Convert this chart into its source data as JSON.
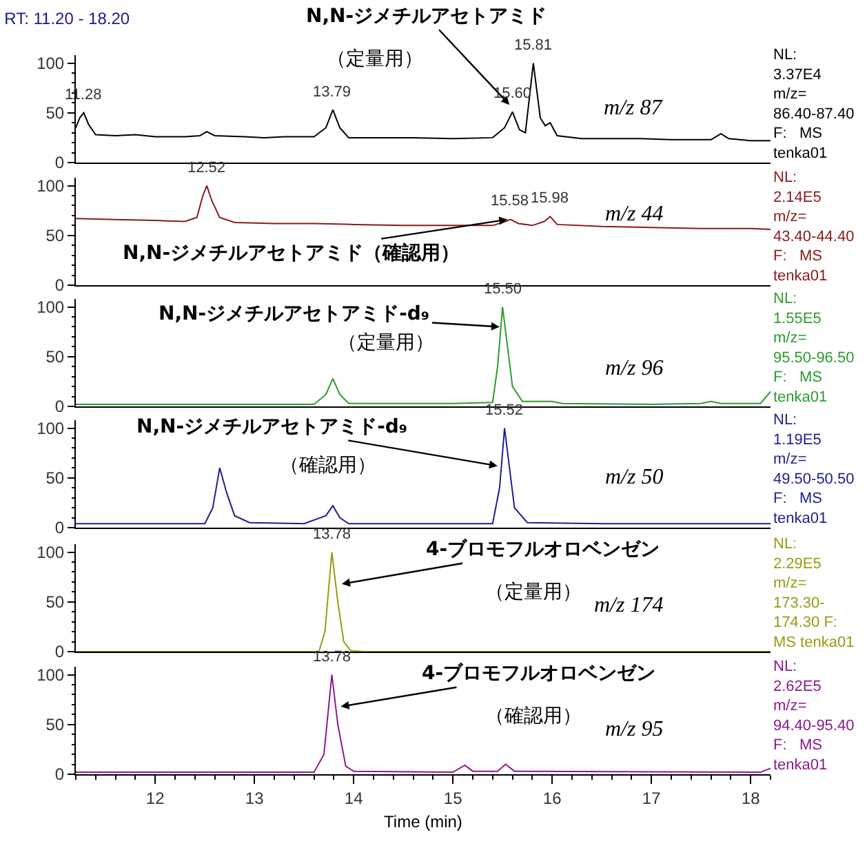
{
  "chart_data": [
    {
      "type": "line",
      "title": "RT: 11.20 - 18.20",
      "xlim": [
        11.2,
        18.2
      ],
      "xticks": [
        12,
        13,
        14,
        15,
        16,
        17,
        18
      ],
      "ylim": [
        0,
        108
      ],
      "yticks": [
        0,
        50,
        100
      ],
      "tick_labels": "y",
      "x": [
        11.2,
        11.24,
        11.28,
        11.33,
        11.4,
        11.6,
        11.8,
        12.0,
        12.3,
        12.45,
        12.52,
        12.6,
        12.9,
        13.1,
        13.3,
        13.6,
        13.72,
        13.79,
        13.86,
        13.95,
        14.2,
        14.6,
        15.0,
        15.4,
        15.52,
        15.6,
        15.67,
        15.73,
        15.81,
        15.88,
        15.93,
        15.98,
        16.05,
        16.3,
        16.6,
        16.9,
        17.2,
        17.6,
        17.7,
        17.78,
        18.0,
        18.2
      ],
      "series": [
        {
          "color": "#000000",
          "values": [
            35,
            45,
            50,
            38,
            28,
            27,
            28,
            26,
            26,
            27,
            31,
            27,
            26,
            25,
            26,
            26,
            35,
            53,
            35,
            25,
            25,
            25,
            24,
            25,
            35,
            51,
            33,
            30,
            100,
            45,
            37,
            40,
            27,
            24,
            24,
            24,
            23,
            23,
            29,
            24,
            22,
            22
          ]
        }
      ],
      "annotations": [
        {
          "text": "N,N-ジメチルアセトアミド",
          "x": 15.57,
          "y": 58
        },
        "（定量用）",
        "m/z 87",
        "NL:\n3.37E4\nm/z=\n86.40-87.40\nF:   MS\ntenka01",
        {
          "text": "11.28",
          "x": 11.28,
          "y": 50
        },
        {
          "text": "13.79",
          "x": 13.79,
          "y": 53
        },
        {
          "text": "15.60",
          "x": 15.6,
          "y": 51
        },
        {
          "text": "15.81",
          "x": 15.81,
          "y": 100
        }
      ]
    },
    {
      "type": "line",
      "xlim": [
        11.2,
        18.2
      ],
      "xticks": [
        12,
        13,
        14,
        15,
        16,
        17,
        18
      ],
      "ylim": [
        0,
        108
      ],
      "yticks": [
        0,
        50,
        100
      ],
      "tick_labels": "y",
      "x": [
        11.2,
        11.6,
        12.0,
        12.3,
        12.42,
        12.48,
        12.52,
        12.57,
        12.65,
        12.8,
        13.2,
        13.6,
        14.0,
        14.5,
        15.0,
        15.4,
        15.5,
        15.58,
        15.66,
        15.8,
        15.92,
        15.98,
        16.05,
        16.5,
        17.0,
        17.5,
        18.0,
        18.2
      ],
      "series": [
        {
          "color": "#8b1a1a",
          "values": [
            67,
            66,
            65,
            64,
            68,
            90,
            100,
            85,
            68,
            63,
            62,
            62,
            61,
            60,
            60,
            60,
            63,
            66,
            62,
            60,
            64,
            69,
            61,
            59,
            58,
            57,
            57,
            56
          ]
        }
      ],
      "annotations": [
        {
          "text": "N,N-ジメチルアセトアミド（確認用）",
          "x": 15.55,
          "y": 66
        },
        "m/z 44",
        "NL:\n2.14E5\nm/z=\n43.40-44.40\nF:   MS\ntenka01",
        {
          "text": "12.52",
          "x": 12.52,
          "y": 100
        },
        {
          "text": "15.58",
          "x": 15.58,
          "y": 66
        },
        {
          "text": "15.98",
          "x": 15.98,
          "y": 69
        }
      ]
    },
    {
      "type": "line",
      "xlim": [
        11.2,
        18.2
      ],
      "xticks": [
        12,
        13,
        14,
        15,
        16,
        17,
        18
      ],
      "ylim": [
        0,
        108
      ],
      "yticks": [
        0,
        50,
        100
      ],
      "tick_labels": "y",
      "x": [
        11.2,
        12,
        13,
        13.6,
        13.72,
        13.79,
        13.86,
        13.95,
        14.1,
        15.0,
        15.4,
        15.45,
        15.5,
        15.55,
        15.6,
        15.7,
        16.0,
        16.1,
        17.0,
        17.5,
        17.6,
        17.7,
        18.1,
        18.2
      ],
      "series": [
        {
          "color": "#2e9b2e",
          "values": [
            2,
            2,
            2,
            2,
            12,
            28,
            12,
            3,
            3,
            3,
            4,
            40,
            100,
            60,
            20,
            5,
            5,
            3,
            2,
            3,
            5,
            3,
            3,
            15
          ]
        }
      ],
      "annotations": [
        {
          "text": "N,N-ジメチルアセトアミド-d₉",
          "x": 15.47,
          "y": 80
        },
        "（定量用）",
        "m/z 96",
        "NL:\n1.55E5\nm/z=\n95.50-96.50\nF:   MS\ntenka01",
        {
          "text": "15.50",
          "x": 15.5,
          "y": 100
        }
      ]
    },
    {
      "type": "line",
      "xlim": [
        11.2,
        18.2
      ],
      "xticks": [
        12,
        13,
        14,
        15,
        16,
        17,
        18
      ],
      "ylim": [
        0,
        108
      ],
      "yticks": [
        0,
        50,
        100
      ],
      "tick_labels": "y",
      "x": [
        11.2,
        12.0,
        12.5,
        12.58,
        12.65,
        12.72,
        12.8,
        12.95,
        13.5,
        13.72,
        13.79,
        13.86,
        13.95,
        15.0,
        15.4,
        15.47,
        15.52,
        15.57,
        15.62,
        15.75,
        16.5,
        17.2,
        18.2
      ],
      "series": [
        {
          "color": "#1f1f8f",
          "values": [
            4,
            4,
            4,
            20,
            60,
            35,
            12,
            5,
            4,
            12,
            22,
            10,
            4,
            4,
            4,
            40,
            100,
            60,
            20,
            5,
            4,
            4,
            4
          ]
        }
      ],
      "annotations": [
        {
          "text": "N,N-ジメチルアセトアミド-d₉",
          "x": 15.45,
          "y": 62
        },
        "（確認用）",
        "m/z 50",
        "NL:\n1.19E5\nm/z=\n49.50-50.50\nF:   MS\ntenka01",
        {
          "text": "15.52",
          "x": 15.52,
          "y": 100
        }
      ]
    },
    {
      "type": "line",
      "xlim": [
        11.2,
        18.2
      ],
      "xticks": [
        12,
        13,
        14,
        15,
        16,
        17,
        18
      ],
      "ylim": [
        0,
        108
      ],
      "yticks": [
        0,
        50,
        100
      ],
      "tick_labels": "y",
      "x": [
        11.2,
        13.65,
        13.71,
        13.78,
        13.84,
        13.9,
        13.97,
        14.1,
        18.2
      ],
      "series": [
        {
          "color": "#9a9a12",
          "values": [
            0,
            0,
            20,
            100,
            50,
            10,
            1,
            0,
            0
          ]
        }
      ],
      "annotations": [
        {
          "text": "4-ブロモフルオロベンゼン",
          "x": 13.88,
          "y": 68
        },
        "（定量用）",
        "m/z 174",
        "NL:\n2.29E5\nm/z=\n173.30-\n174.30 F:\nMS tenka01",
        {
          "text": "13.78",
          "x": 13.78,
          "y": 100
        }
      ]
    },
    {
      "type": "line",
      "xlim": [
        11.2,
        18.2
      ],
      "xticks": [
        12,
        13,
        14,
        15,
        16,
        17,
        18
      ],
      "ylim": [
        0,
        108
      ],
      "yticks": [
        0,
        50,
        100
      ],
      "xlabel": "Time (min)",
      "x": [
        11.2,
        13.6,
        13.7,
        13.78,
        13.84,
        13.92,
        14.0,
        15.0,
        15.12,
        15.2,
        15.45,
        15.53,
        15.62,
        18.1,
        18.2
      ],
      "series": [
        {
          "color": "#8b1a8b",
          "values": [
            2,
            2,
            20,
            100,
            50,
            8,
            3,
            2,
            9,
            3,
            3,
            10,
            3,
            2,
            6
          ]
        }
      ],
      "annotations": [
        {
          "text": "4-ブロモフルオロベンゼン",
          "x": 13.87,
          "y": 68
        },
        "（確認用）",
        "m/z 95",
        "NL:\n2.62E5\nm/z=\n94.40-95.40\nF:   MS\ntenka01",
        {
          "text": "13.78",
          "x": 13.78,
          "y": 100
        }
      ]
    }
  ]
}
